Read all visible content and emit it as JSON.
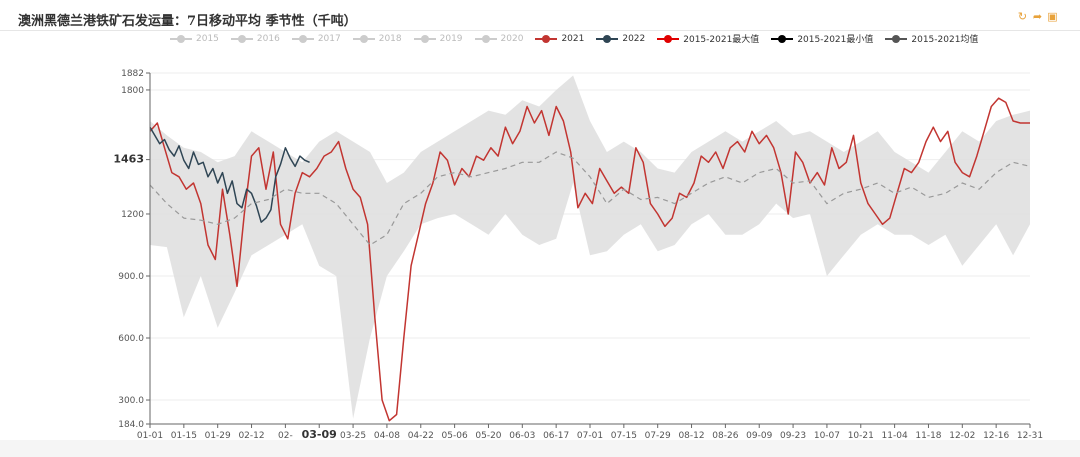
{
  "window": {
    "title": "澳洲黑德兰港铁矿石发运量：7日移动平均 季节性（千吨）"
  },
  "toolbox": {
    "icons": [
      "refresh-icon",
      "share-icon",
      "save-image-icon"
    ]
  },
  "legend": [
    {
      "label": "2015",
      "color": "#cccccc",
      "active": false
    },
    {
      "label": "2016",
      "color": "#cccccc",
      "active": false
    },
    {
      "label": "2017",
      "color": "#cccccc",
      "active": false
    },
    {
      "label": "2018",
      "color": "#cccccc",
      "active": false
    },
    {
      "label": "2019",
      "color": "#cccccc",
      "active": false
    },
    {
      "label": "2020",
      "color": "#cccccc",
      "active": false
    },
    {
      "label": "2021",
      "color": "#c23531",
      "active": true
    },
    {
      "label": "2022",
      "color": "#2f4554",
      "active": true
    },
    {
      "label": "2015-2021最大值",
      "color": "#e00000",
      "active": true
    },
    {
      "label": "2015-2021最小值",
      "color": "#000000",
      "active": true
    },
    {
      "label": "2015-2021均值",
      "color": "#555555",
      "active": true
    }
  ],
  "chart_data": {
    "type": "line",
    "title": "澳洲黑德兰港铁矿石发运量：7日移动平均 季节性（千吨）",
    "ylim": [
      184,
      1882
    ],
    "yticks": [
      "184.0",
      "300.0",
      "600.0",
      "900.0",
      "1200",
      "1463",
      "1800",
      "1882"
    ],
    "xticks": [
      "01-01",
      "01-15",
      "01-29",
      "02-12",
      "02-",
      "03-09",
      "03-25",
      "04-08",
      "04-22",
      "05-06",
      "05-20",
      "06-03",
      "06-17",
      "07-01",
      "07-15",
      "07-29",
      "08-12",
      "08-26",
      "09-09",
      "09-23",
      "10-07",
      "10-21",
      "11-04",
      "11-18",
      "12-02",
      "12-16",
      "12-31"
    ],
    "highlight_x": "03-09",
    "highlight_y": "1463",
    "band": {
      "x": [
        1,
        8,
        15,
        22,
        29,
        36,
        43,
        50,
        57,
        64,
        71,
        78,
        85,
        92,
        99,
        106,
        113,
        120,
        127,
        134,
        141,
        148,
        155,
        162,
        169,
        176,
        183,
        190,
        197,
        204,
        211,
        218,
        225,
        232,
        239,
        246,
        253,
        260,
        267,
        274,
        281,
        288,
        295,
        302,
        309,
        316,
        323,
        330,
        337,
        344,
        351,
        358,
        365
      ],
      "min": [
        1050,
        1040,
        700,
        900,
        650,
        820,
        1000,
        1050,
        1100,
        1150,
        950,
        900,
        210,
        600,
        900,
        1020,
        1150,
        1180,
        1200,
        1150,
        1100,
        1200,
        1100,
        1050,
        1080,
        1350,
        1000,
        1020,
        1100,
        1150,
        1020,
        1050,
        1150,
        1200,
        1100,
        1100,
        1150,
        1250,
        1180,
        1200,
        900,
        1000,
        1100,
        1150,
        1100,
        1100,
        1050,
        1100,
        950,
        1050,
        1150,
        1000,
        1150
      ],
      "max": [
        1650,
        1580,
        1520,
        1500,
        1450,
        1480,
        1600,
        1550,
        1500,
        1450,
        1550,
        1600,
        1550,
        1500,
        1350,
        1400,
        1500,
        1550,
        1600,
        1650,
        1700,
        1680,
        1750,
        1720,
        1800,
        1870,
        1650,
        1500,
        1550,
        1500,
        1420,
        1400,
        1500,
        1550,
        1600,
        1550,
        1600,
        1650,
        1580,
        1600,
        1550,
        1500,
        1550,
        1600,
        1500,
        1450,
        1400,
        1500,
        1600,
        1550,
        1650,
        1680,
        1700
      ]
    },
    "series": [
      {
        "name": "2021",
        "color": "#c23531",
        "x": [
          1,
          4,
          7,
          10,
          13,
          16,
          19,
          22,
          25,
          28,
          31,
          34,
          37,
          40,
          43,
          46,
          49,
          52,
          55,
          58,
          61,
          64,
          67,
          70,
          73,
          76,
          79,
          82,
          85,
          88,
          91,
          94,
          97,
          100,
          103,
          106,
          109,
          112,
          115,
          118,
          121,
          124,
          127,
          130,
          133,
          136,
          139,
          142,
          145,
          148,
          151,
          154,
          157,
          160,
          163,
          166,
          169,
          172,
          175,
          178,
          181,
          184,
          187,
          190,
          193,
          196,
          199,
          202,
          205,
          208,
          211,
          214,
          217,
          220,
          223,
          226,
          229,
          232,
          235,
          238,
          241,
          244,
          247,
          250,
          253,
          256,
          259,
          262,
          265,
          268,
          271,
          274,
          277,
          280,
          283,
          286,
          289,
          292,
          295,
          298,
          301,
          304,
          307,
          310,
          313,
          316,
          319,
          322,
          325,
          328,
          331,
          334,
          337,
          340,
          343,
          346,
          349,
          352,
          355,
          358,
          361,
          365
        ],
        "values": [
          1600,
          1640,
          1520,
          1400,
          1380,
          1320,
          1350,
          1250,
          1050,
          980,
          1320,
          1100,
          850,
          1200,
          1480,
          1520,
          1320,
          1500,
          1150,
          1080,
          1300,
          1400,
          1380,
          1420,
          1480,
          1500,
          1550,
          1420,
          1320,
          1280,
          1150,
          700,
          300,
          200,
          230,
          600,
          950,
          1100,
          1250,
          1350,
          1500,
          1460,
          1340,
          1420,
          1380,
          1480,
          1460,
          1520,
          1480,
          1620,
          1540,
          1600,
          1720,
          1640,
          1700,
          1580,
          1720,
          1650,
          1500,
          1230,
          1300,
          1250,
          1420,
          1360,
          1300,
          1330,
          1300,
          1520,
          1450,
          1250,
          1200,
          1140,
          1180,
          1300,
          1280,
          1350,
          1480,
          1450,
          1500,
          1420,
          1520,
          1550,
          1500,
          1600,
          1540,
          1580,
          1520,
          1400,
          1200,
          1500,
          1450,
          1350,
          1400,
          1340,
          1520,
          1420,
          1450,
          1580,
          1350,
          1250,
          1200,
          1150,
          1180,
          1300,
          1420,
          1400,
          1450,
          1550,
          1620,
          1550,
          1600,
          1450,
          1400,
          1380,
          1480,
          1600,
          1720,
          1760,
          1740,
          1650,
          1640,
          1640
        ]
      },
      {
        "name": "2022",
        "color": "#2f4554",
        "x": [
          1,
          3,
          5,
          7,
          9,
          11,
          13,
          15,
          17,
          19,
          21,
          23,
          25,
          27,
          29,
          31,
          33,
          35,
          37,
          39,
          41,
          43,
          45,
          47,
          49,
          51,
          53,
          55,
          57,
          59,
          61,
          63,
          65,
          67
        ],
        "values": [
          1620,
          1580,
          1540,
          1560,
          1510,
          1480,
          1530,
          1460,
          1420,
          1500,
          1440,
          1450,
          1380,
          1420,
          1350,
          1400,
          1300,
          1360,
          1250,
          1230,
          1320,
          1300,
          1240,
          1160,
          1180,
          1220,
          1380,
          1440,
          1520,
          1470,
          1430,
          1480,
          1460,
          1450
        ]
      },
      {
        "name": "2015-2021均值",
        "color": "#999999",
        "x": [
          1,
          8,
          15,
          22,
          29,
          36,
          43,
          50,
          57,
          64,
          71,
          78,
          85,
          92,
          99,
          106,
          113,
          120,
          127,
          134,
          141,
          148,
          155,
          162,
          169,
          176,
          183,
          190,
          197,
          204,
          211,
          218,
          225,
          232,
          239,
          246,
          253,
          260,
          267,
          274,
          281,
          288,
          295,
          302,
          309,
          316,
          323,
          330,
          337,
          344,
          351,
          358,
          365
        ],
        "values": [
          1340,
          1250,
          1180,
          1170,
          1150,
          1180,
          1250,
          1270,
          1320,
          1300,
          1300,
          1250,
          1150,
          1050,
          1100,
          1250,
          1300,
          1380,
          1400,
          1380,
          1400,
          1420,
          1450,
          1450,
          1500,
          1470,
          1380,
          1250,
          1320,
          1270,
          1280,
          1250,
          1300,
          1350,
          1380,
          1350,
          1400,
          1420,
          1350,
          1360,
          1250,
          1300,
          1320,
          1350,
          1300,
          1330,
          1280,
          1300,
          1350,
          1320,
          1400,
          1450,
          1430
        ]
      }
    ]
  }
}
